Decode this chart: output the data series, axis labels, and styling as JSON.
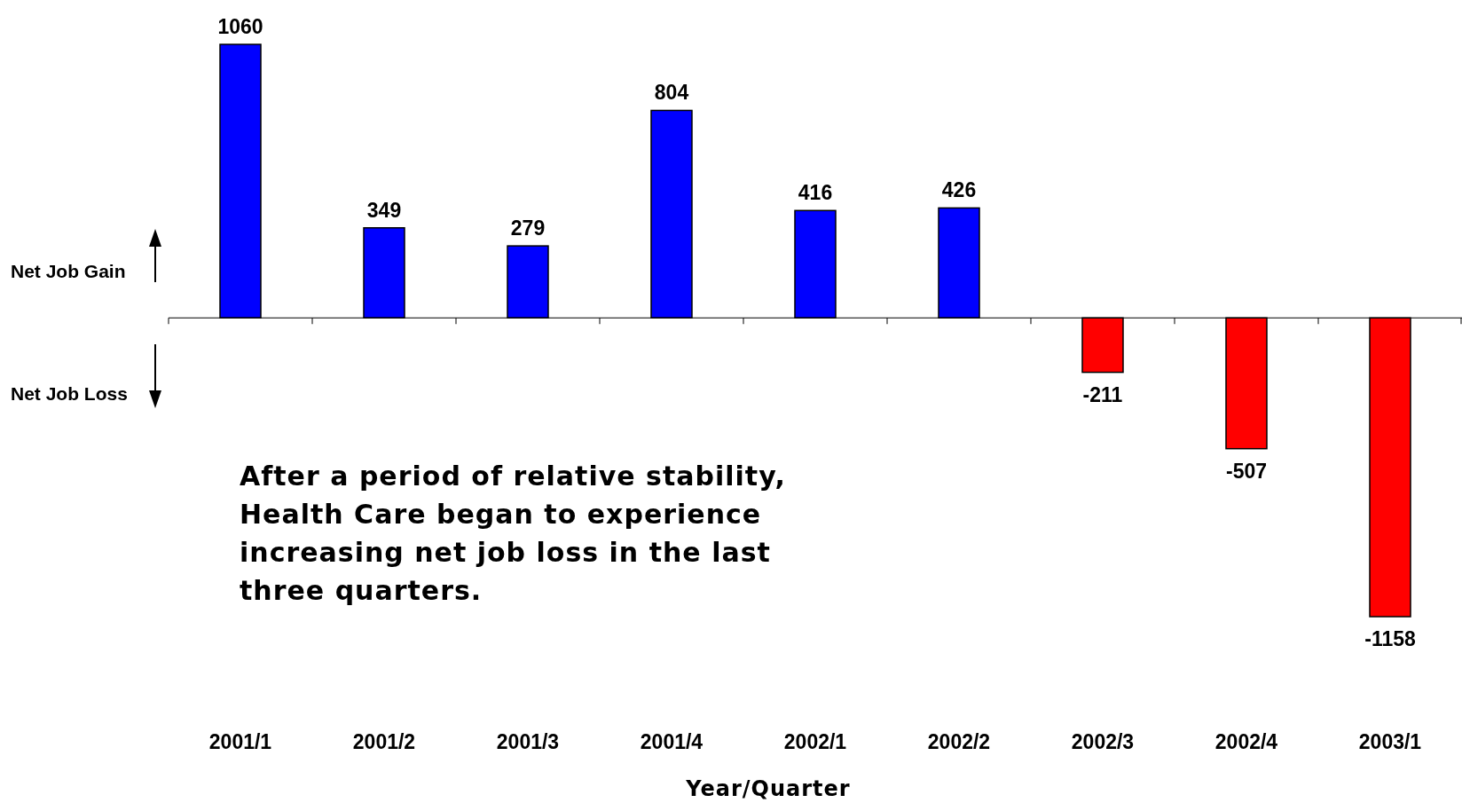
{
  "chart_data": {
    "type": "bar",
    "xlabel": "Year/Quarter",
    "categories": [
      "2001/1",
      "2001/2",
      "2001/3",
      "2001/4",
      "2002/1",
      "2002/2",
      "2002/3",
      "2002/4",
      "2003/1"
    ],
    "values": [
      1060,
      349,
      279,
      804,
      416,
      426,
      -211,
      -507,
      -1158
    ],
    "colors": [
      "#0000ff",
      "#0000ff",
      "#0000ff",
      "#0000ff",
      "#0000ff",
      "#0000ff",
      "#ff0000",
      "#ff0000",
      "#ff0000"
    ],
    "relative": false,
    "data_labels": true,
    "annotations": [
      "Net Job Gain",
      "Net Job Loss",
      "After a period of relative stability, Health Care began to experience increasing net job loss in the last three quarters."
    ]
  }
}
